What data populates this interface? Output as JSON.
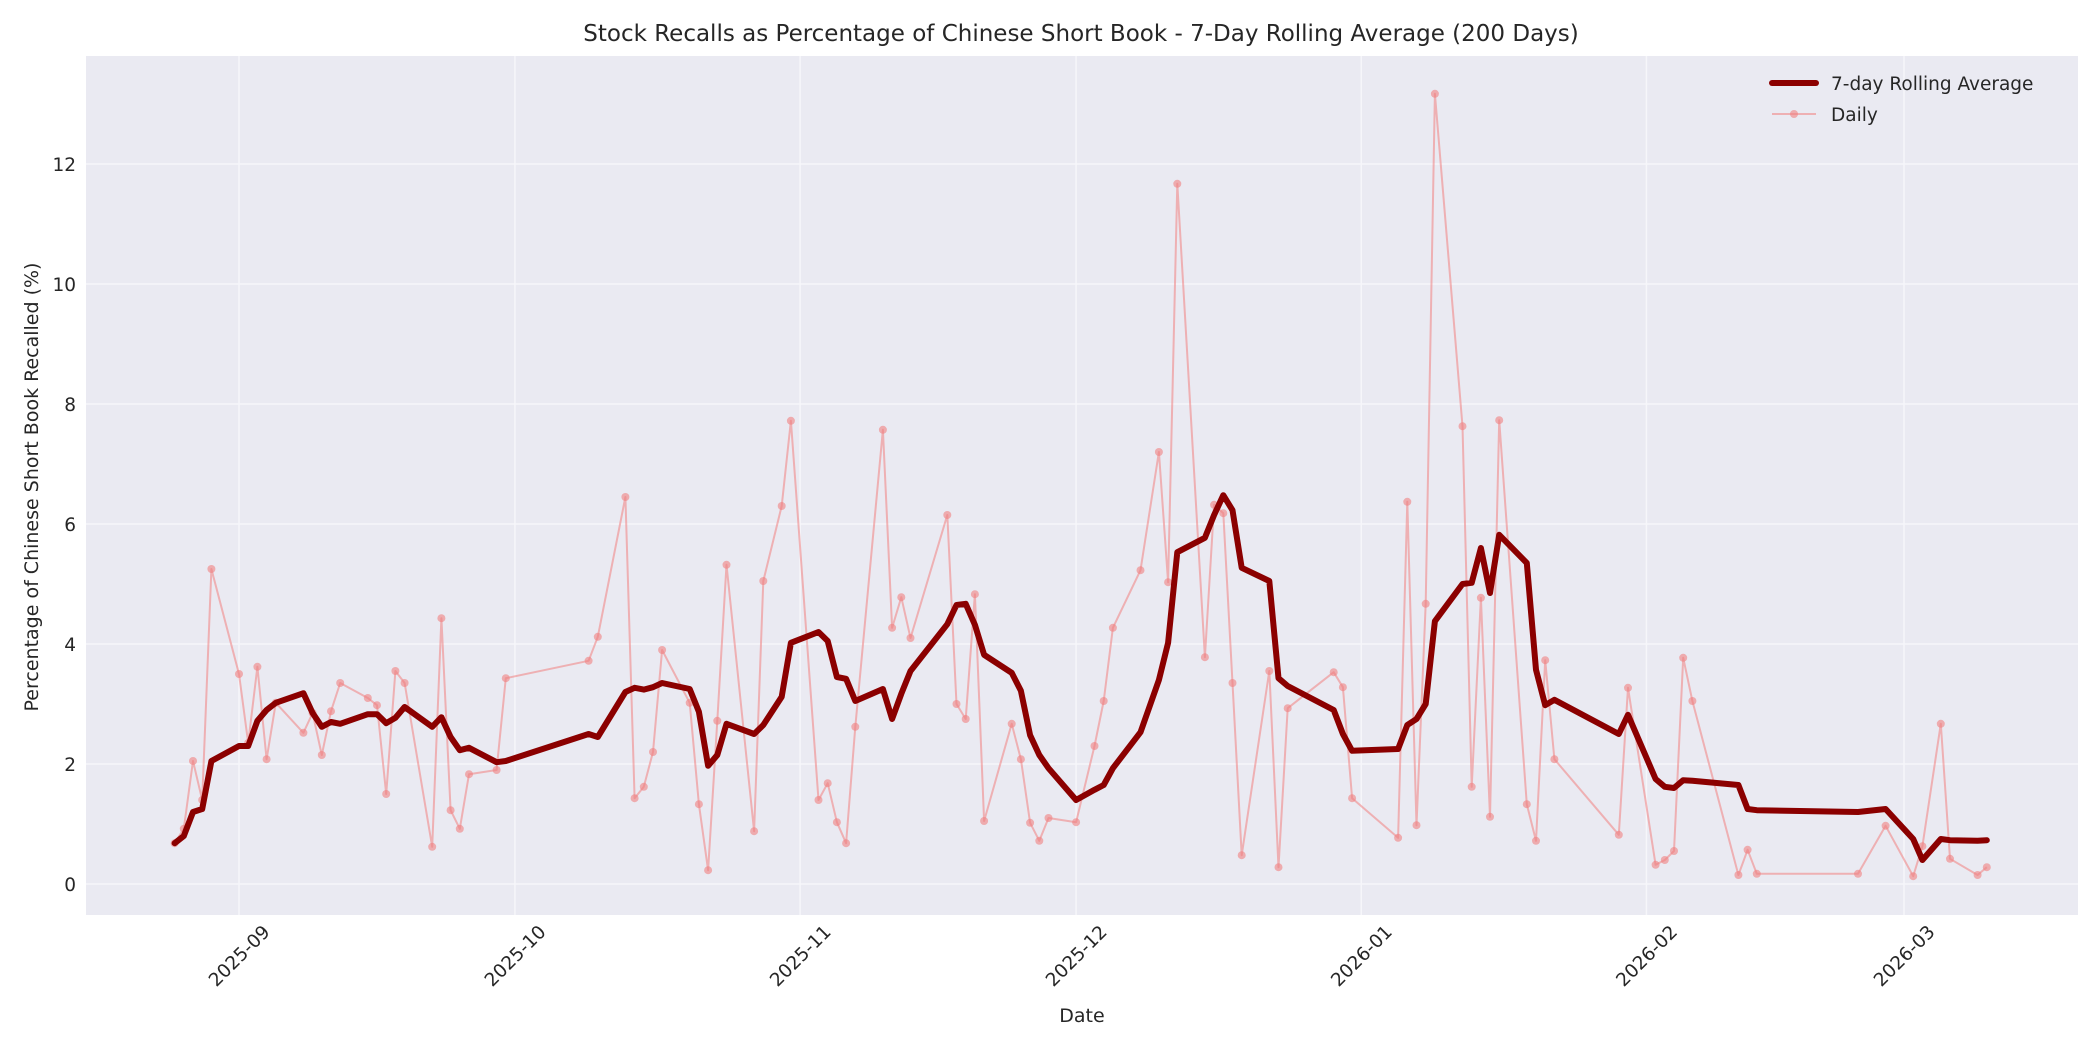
{
  "chart_data": {
    "type": "line",
    "title": "Stock Recalls as Percentage of Chinese Short Book - 7-Day Rolling Average (200 Days)",
    "xlabel": "Date",
    "ylabel": "Percentage of Chinese Short Book Recalled (%)",
    "ylim": [
      -0.55,
      13.7
    ],
    "xlim": [
      "2025-08-16",
      "2026-03-19"
    ],
    "grid": true,
    "legend_position": "upper right",
    "x_ticks": [
      "2025-09",
      "2025-10",
      "2025-11",
      "2025-12",
      "2026-01",
      "2026-02",
      "2026-03"
    ],
    "y_ticks": [
      0,
      2,
      4,
      6,
      8,
      10,
      12
    ],
    "colors": {
      "rolling": "#8b0000",
      "daily": "#f08080",
      "plot_bg": "#eaeaf2",
      "grid": "#f4f4f8"
    },
    "series": [
      {
        "name": "7-day Rolling Average",
        "style": "thick-line"
      },
      {
        "name": "Daily",
        "style": "thin-line-with-markers"
      }
    ],
    "x": [
      "2025-08-25",
      "2025-08-26",
      "2025-08-27",
      "2025-08-28",
      "2025-08-29",
      "2025-09-01",
      "2025-09-02",
      "2025-09-03",
      "2025-09-04",
      "2025-09-05",
      "2025-09-08",
      "2025-09-09",
      "2025-09-10",
      "2025-09-11",
      "2025-09-12",
      "2025-09-15",
      "2025-09-16",
      "2025-09-17",
      "2025-09-18",
      "2025-09-19",
      "2025-09-22",
      "2025-09-23",
      "2025-09-24",
      "2025-09-25",
      "2025-09-26",
      "2025-09-29",
      "2025-09-30",
      "2025-10-09",
      "2025-10-10",
      "2025-10-13",
      "2025-10-14",
      "2025-10-15",
      "2025-10-16",
      "2025-10-17",
      "2025-10-20",
      "2025-10-21",
      "2025-10-22",
      "2025-10-23",
      "2025-10-24",
      "2025-10-27",
      "2025-10-28",
      "2025-10-30",
      "2025-10-31",
      "2025-11-03",
      "2025-11-04",
      "2025-11-05",
      "2025-11-06",
      "2025-11-07",
      "2025-11-10",
      "2025-11-11",
      "2025-11-12",
      "2025-11-13",
      "2025-11-17",
      "2025-11-18",
      "2025-11-19",
      "2025-11-20",
      "2025-11-21",
      "2025-11-24",
      "2025-11-25",
      "2025-11-26",
      "2025-11-27",
      "2025-11-28",
      "2025-12-01",
      "2025-12-03",
      "2025-12-04",
      "2025-12-05",
      "2025-12-08",
      "2025-12-10",
      "2025-12-11",
      "2025-12-12",
      "2025-12-15",
      "2025-12-16",
      "2025-12-17",
      "2025-12-18",
      "2025-12-19",
      "2025-12-22",
      "2025-12-23",
      "2025-12-24",
      "2025-12-29",
      "2025-12-30",
      "2025-12-31",
      "2026-01-05",
      "2026-01-06",
      "2026-01-07",
      "2026-01-08",
      "2026-01-09",
      "2026-01-12",
      "2026-01-13",
      "2026-01-14",
      "2026-01-15",
      "2026-01-16",
      "2026-01-19",
      "2026-01-20",
      "2026-01-21",
      "2026-01-22",
      "2026-01-29",
      "2026-01-30",
      "2026-02-02",
      "2026-02-03",
      "2026-02-04",
      "2026-02-05",
      "2026-02-06",
      "2026-02-11",
      "2026-02-12",
      "2026-02-13",
      "2026-02-24",
      "2026-02-27",
      "2026-03-02",
      "2026-03-03",
      "2026-03-05",
      "2026-03-06",
      "2026-03-09",
      "2026-03-10"
    ],
    "daily": [
      0.68,
      0.92,
      2.05,
      1.4,
      5.25,
      3.5,
      2.35,
      3.62,
      2.08,
      3.02,
      2.52,
      2.85,
      2.15,
      2.88,
      3.35,
      3.1,
      2.98,
      1.5,
      3.55,
      3.35,
      0.62,
      4.43,
      1.23,
      0.92,
      1.83,
      1.9,
      3.43,
      3.72,
      4.12,
      6.45,
      1.43,
      1.62,
      2.2,
      3.9,
      3.02,
      1.33,
      0.23,
      2.72,
      5.32,
      0.88,
      5.05,
      6.3,
      7.72,
      1.4,
      1.68,
      1.03,
      0.68,
      2.62,
      7.57,
      4.27,
      4.78,
      4.1,
      6.15,
      3.0,
      2.75,
      4.83,
      1.05,
      2.67,
      2.08,
      1.02,
      0.72,
      1.1,
      1.03,
      2.3,
      3.05,
      4.27,
      5.23,
      7.2,
      5.03,
      11.67,
      3.78,
      6.32,
      6.18,
      3.35,
      0.48,
      3.55,
      0.28,
      2.93,
      3.53,
      3.28,
      1.43,
      0.77,
      6.37,
      0.98,
      4.67,
      13.17,
      7.63,
      1.62,
      4.77,
      1.12,
      7.73,
      1.33,
      0.72,
      3.73,
      2.08,
      0.82,
      3.27,
      0.32,
      0.4,
      0.55,
      3.77,
      3.05,
      0.15,
      0.57,
      0.17,
      0.17,
      0.97,
      0.13,
      0.63,
      2.67,
      0.42,
      0.15,
      0.28
    ],
    "rolling_7d": [
      0.68,
      0.8,
      1.2,
      1.25,
      2.05,
      2.3,
      2.3,
      2.72,
      2.9,
      3.02,
      3.18,
      2.85,
      2.62,
      2.7,
      2.67,
      2.83,
      2.83,
      2.68,
      2.77,
      2.95,
      2.62,
      2.78,
      2.45,
      2.23,
      2.27,
      2.03,
      2.05,
      2.5,
      2.45,
      3.2,
      3.27,
      3.24,
      3.28,
      3.35,
      3.25,
      2.87,
      1.97,
      2.15,
      2.67,
      2.5,
      2.65,
      3.12,
      4.02,
      4.2,
      4.05,
      3.45,
      3.42,
      3.05,
      3.25,
      2.75,
      3.17,
      3.55,
      4.33,
      4.65,
      4.67,
      4.32,
      3.82,
      3.52,
      3.22,
      2.48,
      2.15,
      1.93,
      1.4,
      1.57,
      1.65,
      1.93,
      2.53,
      3.4,
      4.02,
      5.53,
      5.77,
      6.15,
      6.48,
      6.23,
      5.27,
      5.05,
      3.43,
      3.3,
      2.9,
      2.5,
      2.22,
      2.25,
      2.65,
      2.75,
      3.0,
      4.38,
      5.0,
      5.02,
      5.6,
      4.85,
      5.82,
      5.35,
      3.57,
      2.98,
      3.07,
      2.5,
      2.82,
      1.75,
      1.62,
      1.6,
      1.73,
      1.72,
      1.65,
      1.25,
      1.23,
      1.2,
      1.25,
      0.75,
      0.4,
      0.75,
      0.73,
      0.72,
      0.73
    ]
  },
  "legend": {
    "items": [
      "7-day Rolling Average",
      "Daily"
    ]
  }
}
